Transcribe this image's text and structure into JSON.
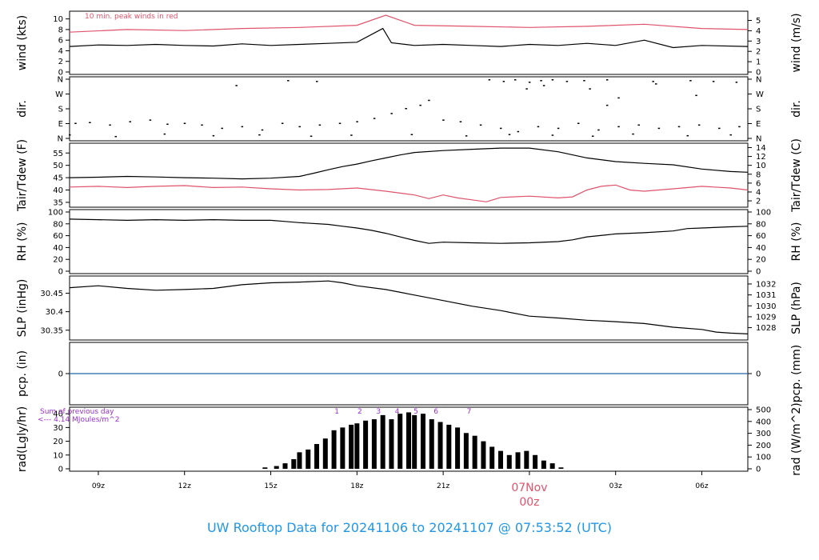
{
  "colors": {
    "black": "#000000",
    "red": "#df536b",
    "blue": "#2297e6",
    "purple": "#9932cc",
    "pcp_line": "#2166ac"
  },
  "footer": {
    "title": "UW Rooftop Data for 20241106  to  20241107 @ 07:53:52  (UTC)"
  },
  "time_axis": {
    "labels": [
      "09z",
      "12z",
      "15z",
      "18z",
      "21z",
      "03z",
      "06z"
    ],
    "date_label": "07Nov",
    "date_label_time": "00z"
  },
  "chart_data": [
    {
      "id": "wind",
      "type": "line",
      "ylabel": "wind (kts)",
      "ylabel_right": "wind (m/s)",
      "yticks": [
        0,
        2,
        4,
        6,
        8,
        10
      ],
      "yticks_right": [
        0,
        1,
        2,
        3,
        4,
        5
      ],
      "ylim": [
        0,
        11
      ],
      "annotation": "10 min. peak winds in red",
      "series": [
        {
          "color": "#000000",
          "x": [
            8.0,
            9.0,
            10.0,
            11.0,
            12.0,
            13.0,
            14.0,
            15.0,
            16.0,
            17.0,
            18.0,
            18.9,
            19.2,
            20.0,
            21.0,
            22.0,
            23.0,
            24.0,
            25.0,
            26.0,
            27.0,
            28.0,
            29.0,
            30.0,
            31.6
          ],
          "y": [
            4.8,
            5.1,
            5.0,
            5.2,
            5.0,
            4.9,
            5.3,
            5.0,
            5.2,
            5.4,
            5.6,
            8.2,
            5.5,
            5.0,
            5.2,
            5.0,
            4.8,
            5.2,
            5.0,
            5.4,
            5.0,
            6.0,
            4.6,
            5.0,
            4.8
          ]
        },
        {
          "color": "#df536b",
          "x": [
            8.0,
            10.0,
            12.0,
            14.0,
            16.0,
            18.0,
            19.0,
            20.0,
            22.0,
            24.0,
            26.0,
            28.0,
            30.0,
            31.6
          ],
          "y": [
            7.5,
            8.0,
            7.8,
            8.2,
            8.4,
            8.8,
            10.7,
            8.8,
            8.6,
            8.4,
            8.6,
            9.0,
            8.2,
            8.0
          ]
        }
      ]
    },
    {
      "id": "dir",
      "type": "scatter",
      "ylabel": "dir.",
      "ylabel_right": "dir.",
      "yticks": [
        "N",
        "E",
        "S",
        "W",
        "N"
      ],
      "yticks_right": [
        "N",
        "E",
        "S",
        "W",
        "N"
      ],
      "ylim": [
        0,
        360
      ],
      "points": [
        [
          8.2,
          90
        ],
        [
          8.7,
          95
        ],
        [
          9.4,
          80
        ],
        [
          10.1,
          100
        ],
        [
          10.8,
          110
        ],
        [
          11.4,
          85
        ],
        [
          12.0,
          90
        ],
        [
          12.6,
          80
        ],
        [
          13.3,
          60
        ],
        [
          14.0,
          70
        ],
        [
          14.7,
          50
        ],
        [
          15.4,
          90
        ],
        [
          16.0,
          70
        ],
        [
          16.7,
          80
        ],
        [
          17.4,
          90
        ],
        [
          18.0,
          100
        ],
        [
          18.6,
          120
        ],
        [
          19.2,
          150
        ],
        [
          19.7,
          180
        ],
        [
          20.2,
          200
        ],
        [
          20.5,
          230
        ],
        [
          21.0,
          110
        ],
        [
          21.6,
          100
        ],
        [
          22.3,
          80
        ],
        [
          23.0,
          60
        ],
        [
          23.6,
          40
        ],
        [
          24.3,
          70
        ],
        [
          25.0,
          60
        ],
        [
          25.7,
          90
        ],
        [
          26.4,
          50
        ],
        [
          27.1,
          70
        ],
        [
          27.8,
          80
        ],
        [
          28.5,
          60
        ],
        [
          29.2,
          70
        ],
        [
          29.9,
          80
        ],
        [
          30.6,
          60
        ],
        [
          31.3,
          70
        ],
        [
          8.0,
          20
        ],
        [
          9.6,
          10
        ],
        [
          11.3,
          25
        ],
        [
          13.0,
          15
        ],
        [
          14.6,
          20
        ],
        [
          16.4,
          12
        ],
        [
          17.8,
          18
        ],
        [
          19.9,
          22
        ],
        [
          21.8,
          14
        ],
        [
          23.3,
          22
        ],
        [
          24.8,
          18
        ],
        [
          26.2,
          12
        ],
        [
          27.6,
          25
        ],
        [
          29.5,
          15
        ],
        [
          31.0,
          20
        ],
        [
          13.8,
          320
        ],
        [
          15.6,
          350
        ],
        [
          16.6,
          345
        ],
        [
          22.6,
          355
        ],
        [
          23.1,
          345
        ],
        [
          23.5,
          355
        ],
        [
          24.0,
          340
        ],
        [
          24.4,
          350
        ],
        [
          24.8,
          355
        ],
        [
          25.3,
          345
        ],
        [
          25.9,
          350
        ],
        [
          26.7,
          355
        ],
        [
          28.3,
          345
        ],
        [
          29.6,
          350
        ],
        [
          30.4,
          345
        ],
        [
          31.2,
          340
        ],
        [
          23.9,
          300
        ],
        [
          24.5,
          320
        ],
        [
          26.1,
          300
        ],
        [
          26.7,
          200
        ],
        [
          27.1,
          245
        ],
        [
          28.4,
          330
        ],
        [
          29.8,
          260
        ]
      ]
    },
    {
      "id": "temp",
      "type": "line",
      "ylabel": "Tair/Tdew (F)",
      "ylabel_right": "Tair/Tdew (C)",
      "yticks": [
        35,
        40,
        45,
        50,
        55
      ],
      "yticks_right": [
        2,
        4,
        6,
        8,
        10,
        12,
        14
      ],
      "ylim": [
        34,
        58
      ],
      "series": [
        {
          "color": "#000000",
          "x": [
            8.0,
            9.0,
            10.0,
            11.0,
            12.0,
            13.0,
            14.0,
            15.0,
            16.0,
            16.5,
            17.0,
            17.5,
            18.0,
            18.5,
            19.0,
            19.5,
            20.0,
            21.0,
            22.0,
            23.0,
            24.0,
            25.0,
            26.0,
            27.0,
            28.0,
            29.0,
            30.0,
            31.0,
            31.6
          ],
          "y": [
            45.0,
            45.2,
            45.5,
            45.3,
            45.0,
            44.8,
            44.5,
            44.8,
            45.5,
            46.8,
            48.2,
            49.5,
            50.5,
            51.8,
            53.0,
            54.2,
            55.2,
            56.0,
            56.5,
            57.0,
            57.0,
            55.5,
            53.0,
            51.5,
            50.8,
            50.2,
            48.5,
            47.5,
            47.2
          ]
        },
        {
          "color": "#df536b",
          "x": [
            8.0,
            9.0,
            10.0,
            11.0,
            12.0,
            13.0,
            14.0,
            15.0,
            16.0,
            17.0,
            18.0,
            19.0,
            20.0,
            20.5,
            21.0,
            21.5,
            22.0,
            22.5,
            23.0,
            24.0,
            25.0,
            25.5,
            26.0,
            26.5,
            27.0,
            27.5,
            28.0,
            29.0,
            30.0,
            31.0,
            31.6
          ],
          "y": [
            41.2,
            41.5,
            41.0,
            41.5,
            41.8,
            41.0,
            41.2,
            40.5,
            40.0,
            40.2,
            40.8,
            39.5,
            38.0,
            36.5,
            38.0,
            36.8,
            36.0,
            35.2,
            37.0,
            37.5,
            36.8,
            37.2,
            40.0,
            41.5,
            42.0,
            40.0,
            39.5,
            40.5,
            41.5,
            40.8,
            40.0
          ]
        }
      ]
    },
    {
      "id": "rh",
      "type": "line",
      "ylabel": "RH (%)",
      "ylabel_right": "RH (%)",
      "yticks": [
        0,
        20,
        40,
        60,
        80,
        100
      ],
      "yticks_right": [
        0,
        20,
        40,
        60,
        80,
        100
      ],
      "ylim": [
        0,
        100
      ],
      "series": [
        {
          "color": "#000000",
          "x": [
            8.0,
            9.0,
            10.0,
            11.0,
            12.0,
            13.0,
            14.0,
            15.0,
            15.5,
            16.0,
            17.0,
            17.5,
            18.0,
            18.5,
            19.0,
            19.5,
            20.0,
            20.5,
            21.0,
            22.0,
            23.0,
            24.0,
            25.0,
            25.5,
            26.0,
            27.0,
            28.0,
            29.0,
            29.5,
            30.0,
            31.0,
            31.6
          ],
          "y": [
            88,
            87,
            86,
            87,
            86,
            87,
            86,
            86,
            84,
            82,
            79,
            76,
            73,
            69,
            64,
            58,
            52,
            47,
            49,
            48,
            47,
            48,
            50,
            53,
            58,
            63,
            65,
            68,
            72,
            73,
            75,
            76
          ]
        }
      ]
    },
    {
      "id": "slp",
      "type": "line",
      "ylabel": "SLP (inHg)",
      "ylabel_right": "SLP (hPa)",
      "yticks": [
        30.35,
        30.4,
        30.45
      ],
      "yticks_right": [
        1028,
        1029,
        1030,
        1031,
        1032
      ],
      "ylim": [
        30.33,
        30.49
      ],
      "series": [
        {
          "color": "#000000",
          "x": [
            8.0,
            9.0,
            10.0,
            11.0,
            12.0,
            13.0,
            14.0,
            15.0,
            16.0,
            17.0,
            17.5,
            18.0,
            19.0,
            20.0,
            21.0,
            22.0,
            23.0,
            24.0,
            25.0,
            26.0,
            27.0,
            28.0,
            29.0,
            30.0,
            30.5,
            31.0,
            31.6
          ],
          "y": [
            30.465,
            30.47,
            30.463,
            30.458,
            30.46,
            30.463,
            30.473,
            30.478,
            30.48,
            30.483,
            30.478,
            30.47,
            30.46,
            30.445,
            30.43,
            30.415,
            30.403,
            30.388,
            30.383,
            30.377,
            30.373,
            30.368,
            30.358,
            30.352,
            30.345,
            30.342,
            30.34
          ]
        }
      ]
    },
    {
      "id": "pcp",
      "type": "line",
      "ylabel": "pcp. (in)",
      "ylabel_right": "pcp. (mm)",
      "yticks": [
        0
      ],
      "yticks_right": [
        0
      ],
      "ylim": [
        -1,
        1
      ],
      "series": [
        {
          "color": "#2166ac",
          "x": [
            8.0,
            31.6
          ],
          "y": [
            0,
            0
          ]
        }
      ]
    },
    {
      "id": "rad",
      "type": "bar",
      "ylabel": "rad(Lgly/hr)",
      "ylabel_right": "rad (W/m^2)",
      "yticks": [
        0,
        10,
        20,
        30,
        40
      ],
      "yticks_right": [
        0,
        100,
        200,
        300,
        400,
        500
      ],
      "ylim": [
        0,
        43
      ],
      "annotation_lines": [
        "Sum of previous day",
        "<--- 4.14 MJoules/m^2"
      ],
      "hour_markers": [
        {
          "label": "1",
          "x": 17.3
        },
        {
          "label": "2",
          "x": 18.1
        },
        {
          "label": "3",
          "x": 18.75
        },
        {
          "label": "4",
          "x": 19.4
        },
        {
          "label": "5",
          "x": 20.05
        },
        {
          "label": "6",
          "x": 20.75
        },
        {
          "label": "7",
          "x": 21.9
        }
      ],
      "x": [
        14.8,
        15.2,
        15.5,
        15.8,
        16.0,
        16.3,
        16.6,
        16.9,
        17.2,
        17.5,
        17.8,
        18.0,
        18.3,
        18.6,
        18.9,
        19.2,
        19.5,
        19.8,
        20.0,
        20.3,
        20.6,
        20.9,
        21.2,
        21.5,
        21.8,
        22.1,
        22.4,
        22.7,
        23.0,
        23.3,
        23.6,
        23.9,
        24.2,
        24.5,
        24.8,
        25.1
      ],
      "values": [
        1,
        2,
        4,
        7,
        12,
        14,
        18,
        22,
        28,
        30,
        32,
        33,
        35,
        36,
        39,
        36,
        40,
        41,
        39,
        40,
        36,
        34,
        32,
        30,
        26,
        24,
        20,
        16,
        13,
        10,
        12,
        13,
        10,
        6,
        4,
        1
      ]
    }
  ]
}
